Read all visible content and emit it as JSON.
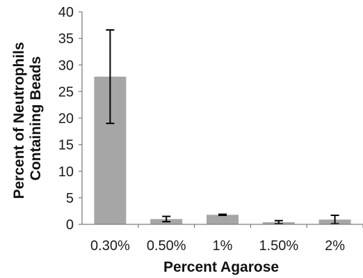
{
  "chart_data": {
    "type": "bar",
    "categories": [
      "0.30%",
      "0.50%",
      "1%",
      "1.50%",
      "2%"
    ],
    "values": [
      27.8,
      1.0,
      1.8,
      0.4,
      0.9
    ],
    "error": [
      8.8,
      0.5,
      0.1,
      0.3,
      0.8
    ],
    "xlabel": "Percent Agarose",
    "ylabel_lines": [
      "Percent of Neutrophils",
      "Containing Beads"
    ],
    "ylim": [
      0,
      40
    ],
    "yticks": [
      "0",
      "5",
      "10",
      "15",
      "20",
      "25",
      "30",
      "35",
      "40"
    ],
    "grid": false,
    "bar_color": "#a6a6a6",
    "error_bar_color": "#000000",
    "axis_color": "#7f7f7f"
  }
}
